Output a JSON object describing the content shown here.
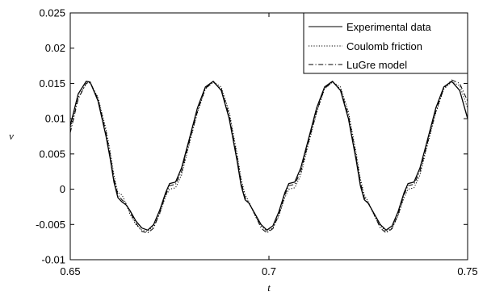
{
  "chart_data": {
    "type": "line",
    "title": "",
    "xlabel": "t",
    "ylabel": "v",
    "xlim": [
      0.65,
      0.75
    ],
    "ylim": [
      -0.01,
      0.025
    ],
    "xticks": [
      0.65,
      0.7,
      0.75
    ],
    "xtick_labels": [
      "0.65",
      "0.7",
      "0.75"
    ],
    "yticks": [
      -0.01,
      -0.005,
      0,
      0.005,
      0.01,
      0.015,
      0.02,
      0.025
    ],
    "ytick_labels": [
      "-0.01",
      "-0.005",
      "0",
      "0.005",
      "0.01",
      "0.015",
      "0.02",
      "0.025"
    ],
    "grid": false,
    "legend_position": "top-right",
    "x": [
      0.65,
      0.652,
      0.654,
      0.655,
      0.657,
      0.659,
      0.66,
      0.661,
      0.662,
      0.663,
      0.664,
      0.665,
      0.6665,
      0.668,
      0.6695,
      0.671,
      0.6725,
      0.674,
      0.675,
      0.6765,
      0.678,
      0.68,
      0.682,
      0.684,
      0.686,
      0.688,
      0.69,
      0.691,
      0.692,
      0.693,
      0.694,
      0.695,
      0.6965,
      0.698,
      0.6995,
      0.701,
      0.7025,
      0.704,
      0.705,
      0.7065,
      0.708,
      0.71,
      0.712,
      0.714,
      0.716,
      0.718,
      0.72,
      0.721,
      0.722,
      0.723,
      0.724,
      0.725,
      0.7265,
      0.728,
      0.7295,
      0.731,
      0.7325,
      0.734,
      0.735,
      0.7365,
      0.738,
      0.74,
      0.742,
      0.744,
      0.746,
      0.748,
      0.75
    ],
    "series": [
      {
        "name": "Experimental data",
        "style": "solid",
        "values": [
          0.009,
          0.0135,
          0.0153,
          0.0152,
          0.0125,
          0.0075,
          0.0045,
          0.001,
          -0.0012,
          -0.0018,
          -0.0022,
          -0.003,
          -0.0045,
          -0.0055,
          -0.0058,
          -0.005,
          -0.003,
          -0.0005,
          0.0008,
          0.001,
          0.003,
          0.0072,
          0.0115,
          0.0145,
          0.0153,
          0.014,
          0.01,
          0.007,
          0.004,
          0.0005,
          -0.0015,
          -0.002,
          -0.0035,
          -0.005,
          -0.0058,
          -0.0052,
          -0.0032,
          -0.0005,
          0.0008,
          0.001,
          0.003,
          0.0072,
          0.0115,
          0.0145,
          0.0153,
          0.014,
          0.01,
          0.007,
          0.004,
          0.0005,
          -0.0015,
          -0.002,
          -0.0035,
          -0.005,
          -0.0058,
          -0.0052,
          -0.0032,
          -0.0005,
          0.0008,
          0.001,
          0.003,
          0.0072,
          0.0115,
          0.0145,
          0.0153,
          0.014,
          0.01
        ]
      },
      {
        "name": "Coulomb friction",
        "style": "dotted",
        "values": [
          0.0085,
          0.013,
          0.015,
          0.0151,
          0.013,
          0.0085,
          0.0055,
          0.002,
          -0.0005,
          -0.0008,
          -0.002,
          -0.0035,
          -0.005,
          -0.0058,
          -0.006,
          -0.0052,
          -0.0035,
          -0.001,
          0.0,
          0.0002,
          0.002,
          0.0065,
          0.0108,
          0.0142,
          0.0152,
          0.0145,
          0.011,
          0.008,
          0.005,
          0.0015,
          -0.0008,
          -0.0018,
          -0.0038,
          -0.0052,
          -0.006,
          -0.0055,
          -0.0038,
          -0.0012,
          0.0,
          0.0002,
          0.002,
          0.0065,
          0.0108,
          0.0142,
          0.0152,
          0.0145,
          0.011,
          0.008,
          0.005,
          0.0015,
          -0.0008,
          -0.0018,
          -0.0038,
          -0.0052,
          -0.006,
          -0.0055,
          -0.0038,
          -0.0012,
          0.0,
          0.0002,
          0.002,
          0.0065,
          0.0108,
          0.0142,
          0.0152,
          0.0147,
          0.0115
        ]
      },
      {
        "name": "LuGre model",
        "style": "dashdot",
        "values": [
          0.008,
          0.0128,
          0.015,
          0.0152,
          0.0128,
          0.008,
          0.005,
          0.0015,
          -0.0008,
          -0.0015,
          -0.002,
          -0.0032,
          -0.0048,
          -0.006,
          -0.0062,
          -0.0055,
          -0.0034,
          -0.0008,
          0.0005,
          0.0007,
          0.0025,
          0.0068,
          0.011,
          0.0143,
          0.0152,
          0.0142,
          0.0105,
          0.0075,
          0.0045,
          0.001,
          -0.0012,
          -0.002,
          -0.0036,
          -0.0055,
          -0.0062,
          -0.0056,
          -0.0036,
          -0.0008,
          0.0005,
          0.0007,
          0.0025,
          0.0068,
          0.011,
          0.0143,
          0.0152,
          0.0142,
          0.0105,
          0.0075,
          0.0045,
          0.001,
          -0.0012,
          -0.002,
          -0.0036,
          -0.0055,
          -0.0062,
          -0.0056,
          -0.0036,
          -0.0008,
          0.0005,
          0.0007,
          0.0025,
          0.0068,
          0.011,
          0.0143,
          0.0155,
          0.015,
          0.0125
        ]
      }
    ]
  }
}
